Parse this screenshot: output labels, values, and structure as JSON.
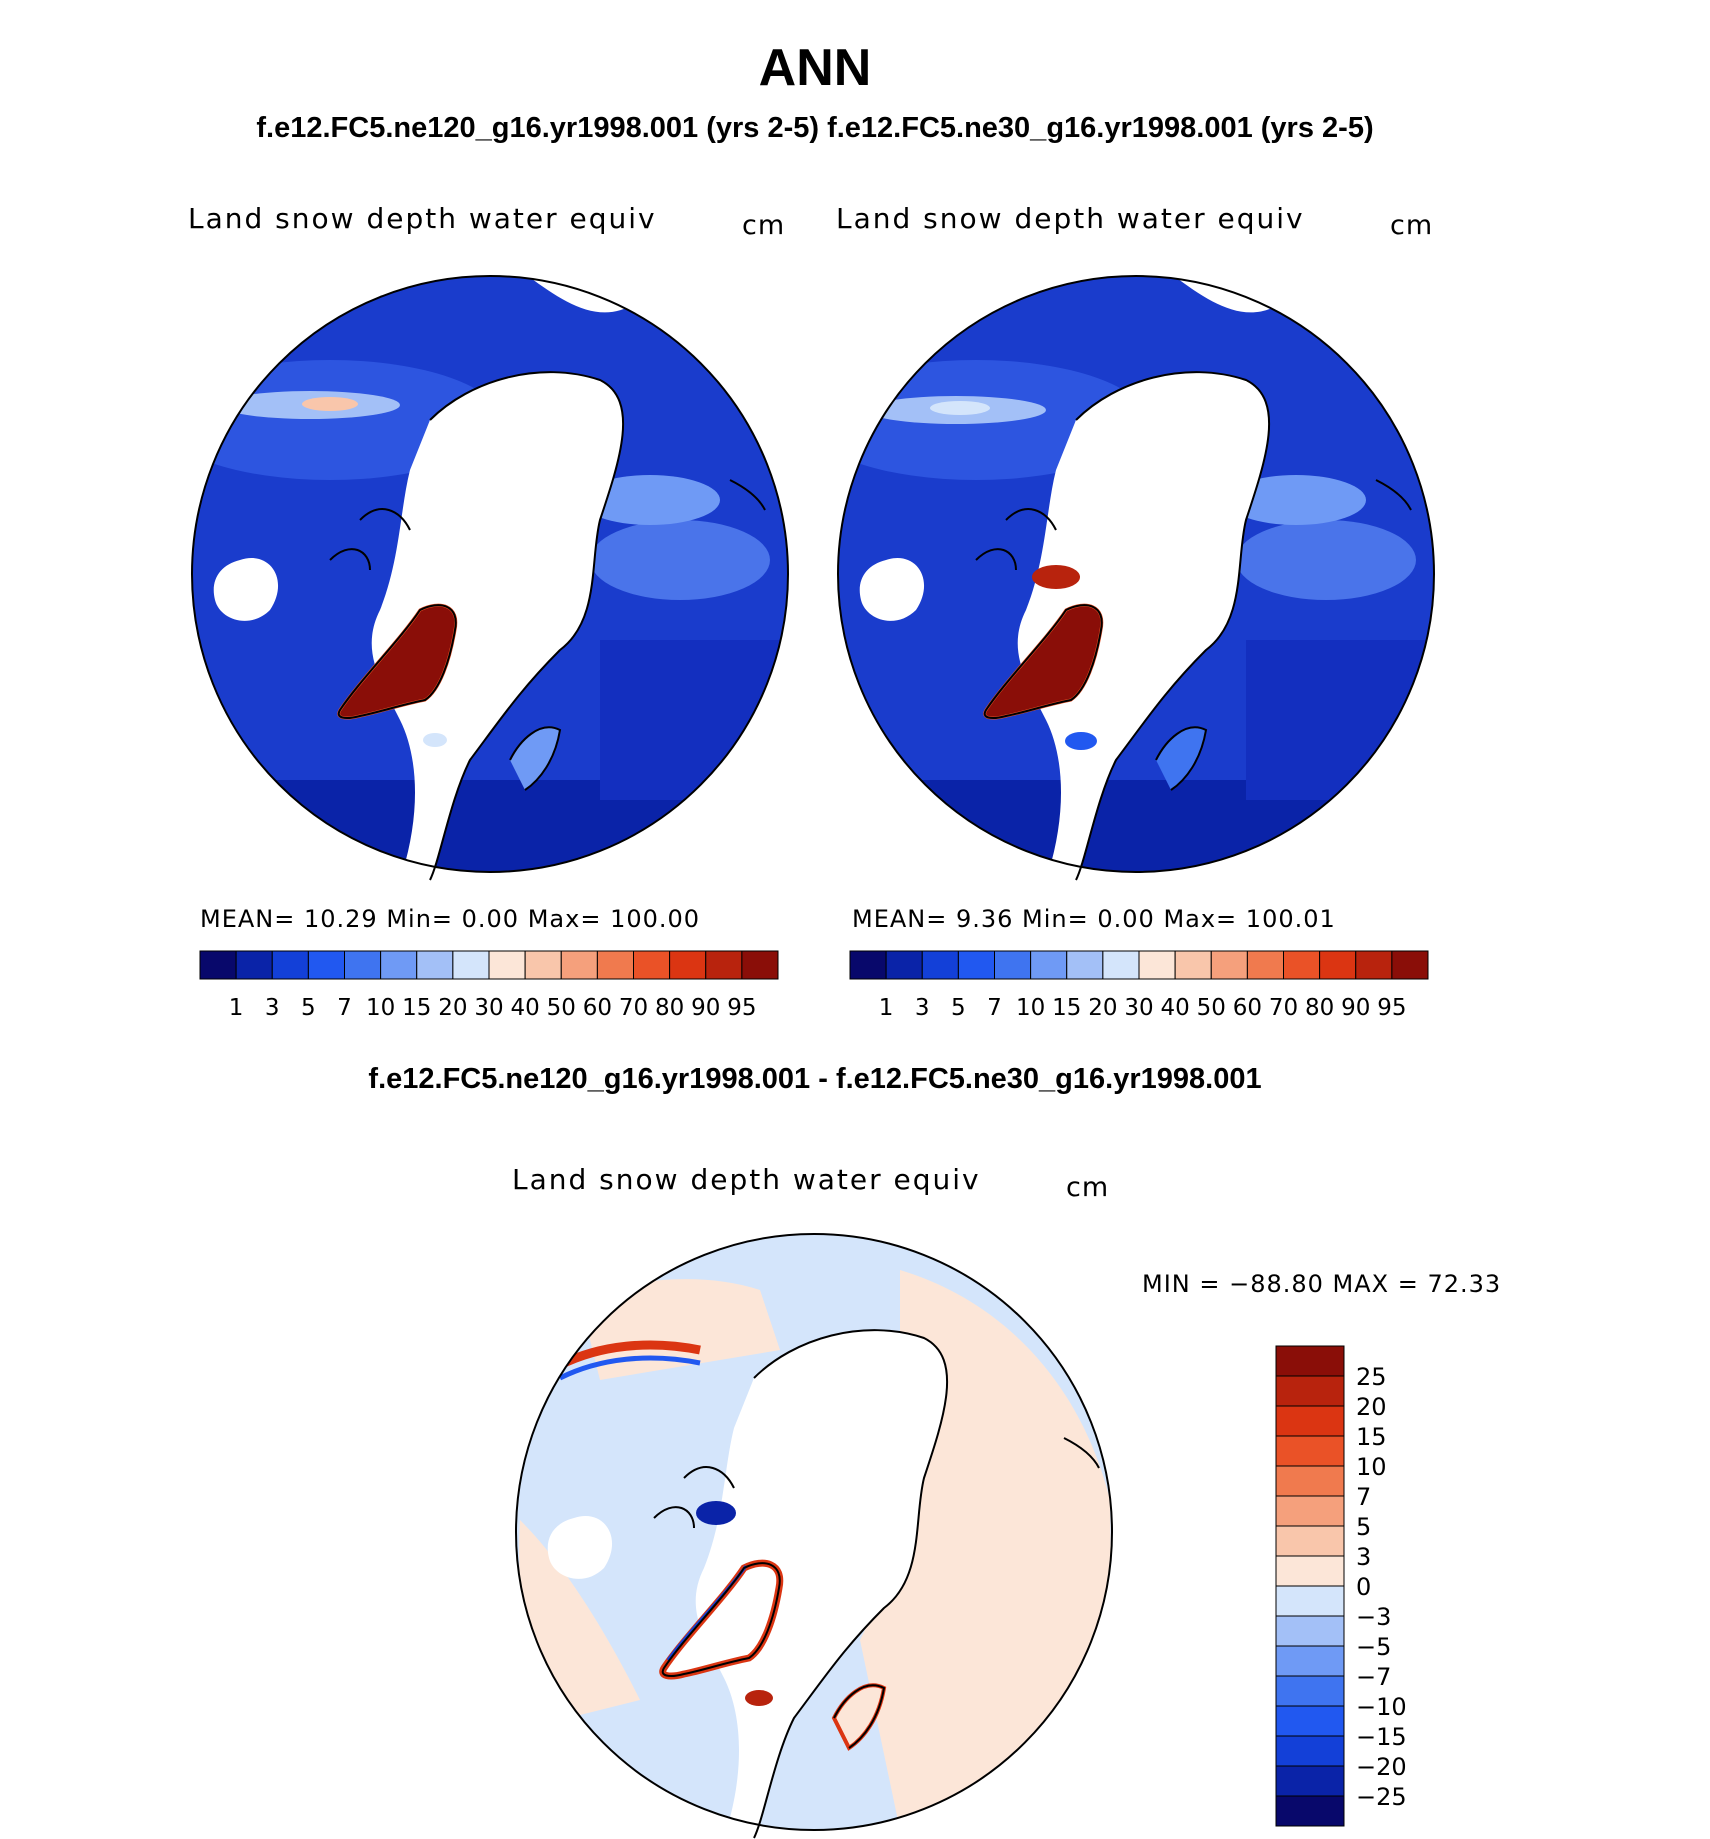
{
  "title": "ANN",
  "case_titles": "f.e12.FC5.ne120_g16.yr1998.001 (yrs 2-5)  f.e12.FC5.ne30_g16.yr1998.001 (yrs 2-5)",
  "diff_title": "f.e12.FC5.ne120_g16.yr1998.001 - f.e12.FC5.ne30_g16.yr1998.001",
  "panels": [
    {
      "variable": "Land snow depth water equiv",
      "units": "cm",
      "stats": "MEAN=   10.29   Min=     0.00    Max=  100.00"
    },
    {
      "variable": "Land snow depth water equiv",
      "units": "cm",
      "stats": "MEAN=     9.36   Min=     0.00    Max=  100.01"
    }
  ],
  "diff_panel": {
    "variable": "Land snow depth water equiv",
    "units": "cm",
    "stats": "MIN  =  −88.80  MAX  =    72.33"
  },
  "abs_colorbar": {
    "levels": [
      "1",
      "3",
      "5",
      "7",
      "10",
      "15",
      "20",
      "30",
      "40",
      "50",
      "60",
      "70",
      "80",
      "90",
      "95"
    ],
    "colors": [
      "#08086b",
      "#0a23a8",
      "#1340d8",
      "#2158f0",
      "#3f74f0",
      "#6f9af5",
      "#a3c0f7",
      "#d4e5fb",
      "#fce6d8",
      "#f9c6ab",
      "#f5a07c",
      "#f07a4e",
      "#ea5227",
      "#db3512",
      "#b8230d",
      "#8a0e08"
    ]
  },
  "diff_colorbar": {
    "levels": [
      "25",
      "20",
      "15",
      "10",
      "7",
      "5",
      "3",
      "0",
      "−3",
      "−5",
      "−7",
      "−10",
      "−15",
      "−20",
      "−25"
    ],
    "colors": [
      "#8a0e08",
      "#b8230d",
      "#db3512",
      "#ea5227",
      "#f07a4e",
      "#f5a07c",
      "#f9c6ab",
      "#fce6d8",
      "#d4e5fb",
      "#a3c0f7",
      "#6f9af5",
      "#3f74f0",
      "#2158f0",
      "#1340d8",
      "#0a23a8",
      "#08086b"
    ]
  }
}
